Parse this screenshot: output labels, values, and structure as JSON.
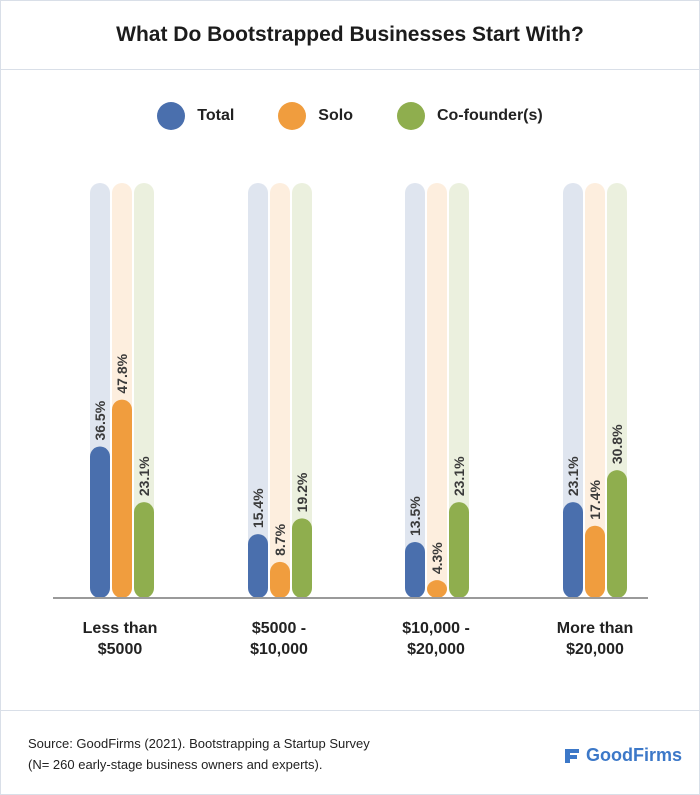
{
  "chart_data": {
    "type": "bar",
    "title": "What Do Bootstrapped Businesses Start With?",
    "categories": [
      [
        "Less than",
        "$5000"
      ],
      [
        "$5000 -",
        "$10,000"
      ],
      [
        "$10,000 -",
        "$20,000"
      ],
      [
        "More than",
        "$20,000"
      ]
    ],
    "series": [
      {
        "name": "Total",
        "color": "#4a6fad",
        "track_color": "#dfe5ef",
        "values": [
          36.5,
          15.4,
          13.5,
          23.1
        ],
        "labels": [
          "36.5%",
          "15.4%",
          "13.5%",
          "23.1%"
        ]
      },
      {
        "name": "Solo",
        "color": "#f09d3e",
        "track_color": "#fdeede",
        "values": [
          47.8,
          8.7,
          4.3,
          17.4
        ],
        "labels": [
          "47.8%",
          "8.7%",
          "4.3%",
          "17.4%"
        ]
      },
      {
        "name": "Co-founder(s)",
        "color": "#8fae4e",
        "track_color": "#ebf0de",
        "values": [
          23.1,
          19.2,
          23.1,
          30.8
        ],
        "labels": [
          "23.1%",
          "19.2%",
          "23.1%",
          "30.8%"
        ]
      }
    ],
    "ylim": [
      0,
      100
    ],
    "legend": "top-center",
    "grid": false
  },
  "footer": {
    "source_line1": "Source: GoodFirms (2021). Bootstrapping a Startup Survey",
    "source_line2": "(N= 260 early-stage business owners and experts).",
    "brand_name": "GoodFirms",
    "brand_color": "#3c78c8"
  }
}
